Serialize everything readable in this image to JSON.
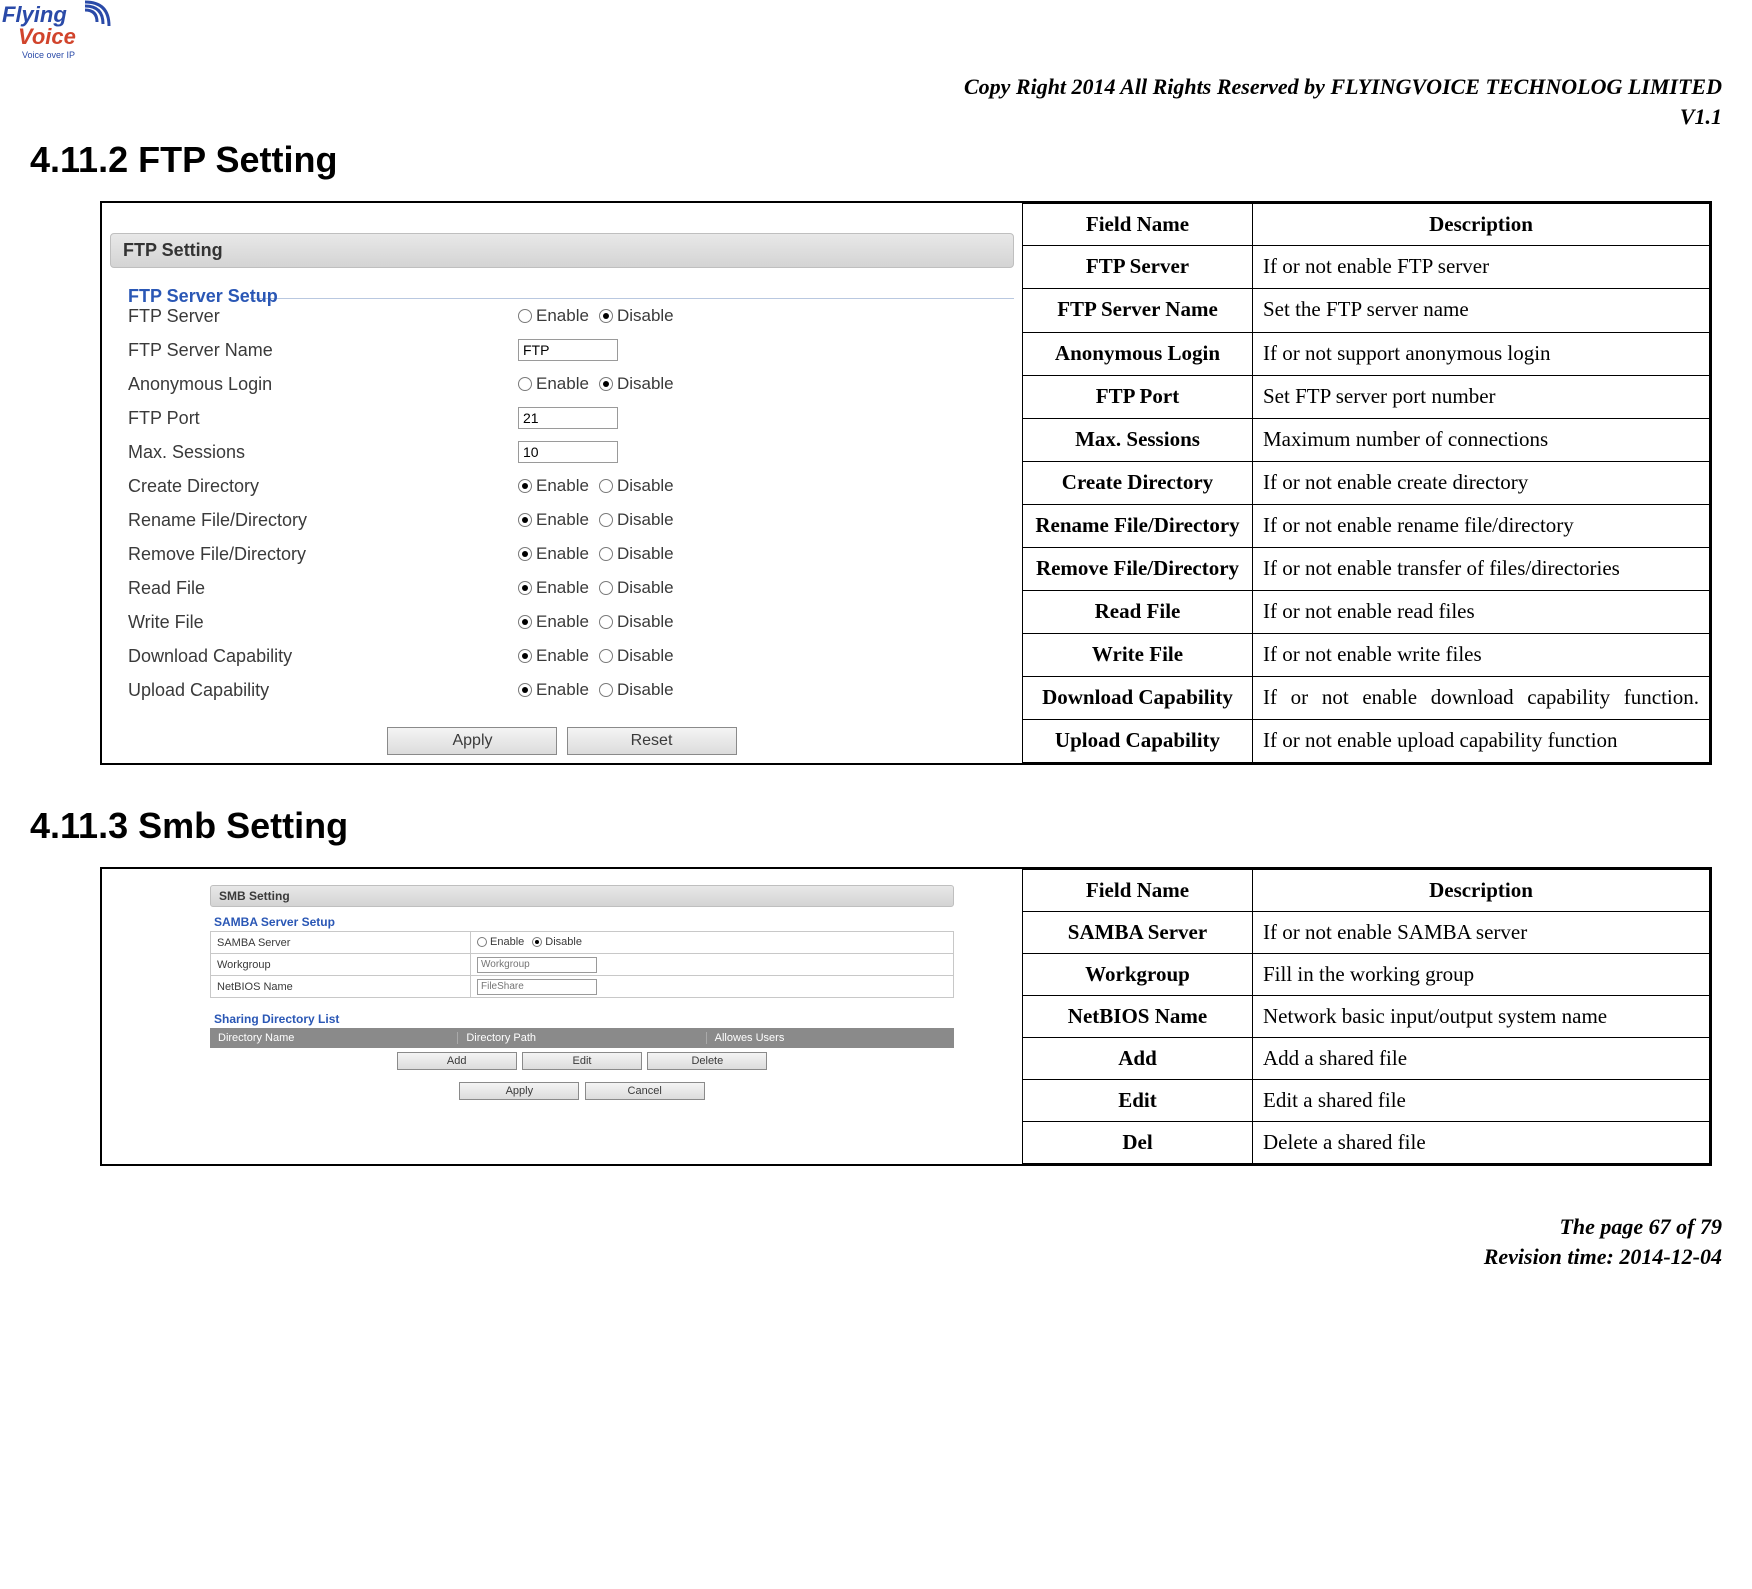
{
  "header": {
    "copy": "Copy Right 2014 All Rights Reserved by FLYINGVOICE TECHNOLOG LIMITED",
    "version": "V1.1",
    "logo_top": "Flying",
    "logo_bottom": "Voice",
    "logo_tag": "Voice over IP"
  },
  "sections": {
    "ftp_heading": "4.11.2  FTP Setting",
    "smb_heading": "4.11.3  Smb Setting"
  },
  "ftp_shot": {
    "title": "FTP Setting",
    "group": "FTP Server Setup",
    "enable_label": "Enable",
    "disable_label": "Disable",
    "rows": [
      {
        "label": "FTP Server",
        "type": "radio",
        "selected": "disable"
      },
      {
        "label": "FTP Server Name",
        "type": "text",
        "value": "FTP"
      },
      {
        "label": "Anonymous Login",
        "type": "radio",
        "selected": "disable"
      },
      {
        "label": "FTP Port",
        "type": "text",
        "value": "21"
      },
      {
        "label": "Max. Sessions",
        "type": "text",
        "value": "10"
      },
      {
        "label": "Create Directory",
        "type": "radio",
        "selected": "enable"
      },
      {
        "label": "Rename File/Directory",
        "type": "radio",
        "selected": "enable"
      },
      {
        "label": "Remove File/Directory",
        "type": "radio",
        "selected": "enable"
      },
      {
        "label": "Read File",
        "type": "radio",
        "selected": "enable"
      },
      {
        "label": "Write File",
        "type": "radio",
        "selected": "enable"
      },
      {
        "label": "Download Capability",
        "type": "radio",
        "selected": "enable"
      },
      {
        "label": "Upload Capability",
        "type": "radio",
        "selected": "enable"
      }
    ],
    "apply": "Apply",
    "reset": "Reset"
  },
  "ftp_desc": {
    "head_field": "Field Name",
    "head_desc": "Description",
    "rows": [
      {
        "name": "FTP Server",
        "desc": "If or not enable FTP server"
      },
      {
        "name": "FTP Server Name",
        "desc": "Set the FTP server name"
      },
      {
        "name": "Anonymous Login",
        "desc": "If or not support anonymous login"
      },
      {
        "name": "FTP Port",
        "desc": "Set FTP server port number"
      },
      {
        "name": "Max. Sessions",
        "desc": "Maximum number of connections"
      },
      {
        "name": "Create Directory",
        "desc": "If or not enable create directory"
      },
      {
        "name": "Rename File/Directory",
        "desc": "If or not enable rename file/directory"
      },
      {
        "name": "Remove File/Directory",
        "desc": "If or not enable transfer of files/directories"
      },
      {
        "name": "Read File",
        "desc": "If or not enable read files"
      },
      {
        "name": "Write File",
        "desc": "If or not enable write files"
      },
      {
        "name": "Download Capability",
        "desc": "If or not enable download capability function.",
        "justify": true
      },
      {
        "name": "Upload Capability",
        "desc": "If or not enable upload capability function"
      }
    ]
  },
  "smb_shot": {
    "title": "SMB Setting",
    "group1": "SAMBA Server Setup",
    "group2": "Sharing Directory List",
    "enable_label": "Enable",
    "disable_label": "Disable",
    "rows": [
      {
        "label": "SAMBA Server",
        "type": "radio",
        "selected": "disable"
      },
      {
        "label": "Workgroup",
        "type": "text",
        "placeholder": "Workgroup"
      },
      {
        "label": "NetBIOS Name",
        "type": "text",
        "placeholder": "FileShare"
      }
    ],
    "list_headers": [
      "Directory Name",
      "Directory Path",
      "Allowes Users"
    ],
    "btn_add": "Add",
    "btn_edit": "Edit",
    "btn_delete": "Delete",
    "btn_apply": "Apply",
    "btn_cancel": "Cancel"
  },
  "smb_desc": {
    "head_field": "Field Name",
    "head_desc": "Description",
    "rows": [
      {
        "name": "SAMBA Server",
        "desc": "If or not enable SAMBA server"
      },
      {
        "name": "Workgroup",
        "desc": "Fill in the working group"
      },
      {
        "name": "NetBIOS Name",
        "desc": "Network basic input/output system name"
      },
      {
        "name": "Add",
        "desc": "Add a shared file"
      },
      {
        "name": "Edit",
        "desc": "Edit a shared file"
      },
      {
        "name": "Del",
        "desc": "Delete a shared file"
      }
    ]
  },
  "footer": {
    "page": "The page 67 of 79",
    "rev": "Revision time: 2014-12-04"
  }
}
